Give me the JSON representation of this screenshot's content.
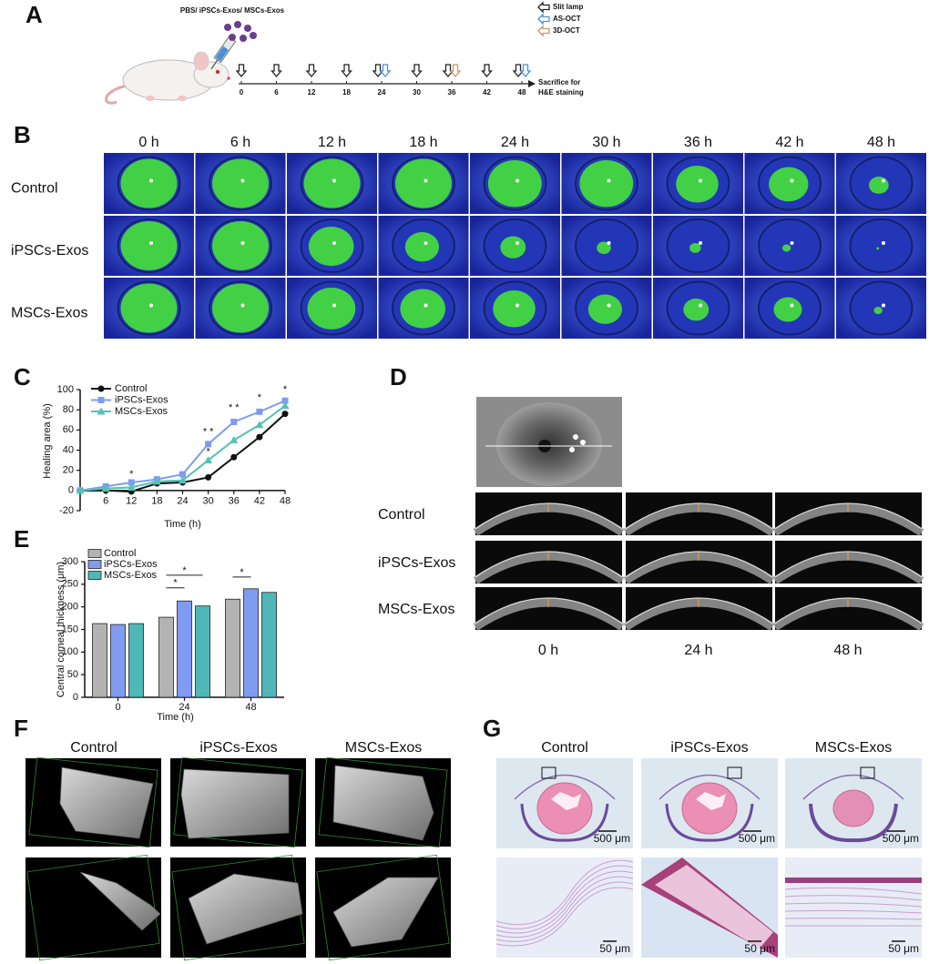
{
  "panel_labels": [
    "A",
    "B",
    "C",
    "D",
    "E",
    "F",
    "G"
  ],
  "panel_a": {
    "treatment": "PBS/ iPSCs-Exos/ MSCs-Exos",
    "legend": [
      "Slit lamp",
      "AS-OCT",
      "3D-OCT"
    ],
    "timepoints": [
      "0",
      "6",
      "12",
      "18",
      "24",
      "30",
      "36",
      "42",
      "48"
    ],
    "endpoint": [
      "Sacrifice for",
      "H&E staining"
    ]
  },
  "panel_b": {
    "columns": [
      "0 h",
      "6 h",
      "12 h",
      "18 h",
      "24 h",
      "30 h",
      "36 h",
      "42 h",
      "48 h"
    ],
    "rows": [
      "Control",
      "iPSCs-Exos",
      "MSCs-Exos"
    ]
  },
  "chart_data": [
    {
      "type": "line",
      "xlabel": "Time (h)",
      "ylabel": "Healing area (%)",
      "x": [
        0,
        6,
        12,
        18,
        24,
        30,
        36,
        42,
        48
      ],
      "xlim": [
        0,
        48
      ],
      "xticks": [
        6,
        12,
        18,
        24,
        30,
        36,
        42,
        48
      ],
      "ylim": [
        -20,
        100
      ],
      "yticks": [
        -20,
        0,
        20,
        40,
        60,
        80,
        100
      ],
      "legend": "upper left",
      "series": [
        {
          "name": "Control",
          "color": "#111111",
          "marker": "circle",
          "values": [
            0,
            0,
            -1,
            7,
            8,
            13,
            33,
            53,
            76
          ]
        },
        {
          "name": "iPSCs-Exos",
          "color": "#7f9cf0",
          "marker": "square",
          "values": [
            0,
            4,
            8,
            11,
            16,
            46,
            68,
            78,
            89
          ]
        },
        {
          "name": "MSCs-Exos",
          "color": "#52c2b4",
          "marker": "triangle",
          "values": [
            0,
            2,
            3,
            9,
            10,
            30,
            50,
            65,
            84
          ]
        }
      ],
      "annotations": [
        {
          "text": "*",
          "x": 12,
          "y": 16,
          "color": "#7f9cf0"
        },
        {
          "text": "* *",
          "x": 30,
          "y": 58,
          "color": "#7f9cf0"
        },
        {
          "text": "*",
          "x": 30,
          "y": 38,
          "color": "#52c2b4"
        },
        {
          "text": "* *",
          "x": 36,
          "y": 82,
          "color": "#7f9cf0"
        },
        {
          "text": "*",
          "x": 42,
          "y": 92,
          "color": "#7f9cf0"
        },
        {
          "text": "*",
          "x": 48,
          "y": 100,
          "color": "#7f9cf0"
        }
      ]
    },
    {
      "type": "bar",
      "xlabel": "Time (h)",
      "ylabel": "Central corneal thickness (μm)",
      "categories": [
        "0",
        "24",
        "48"
      ],
      "ylim": [
        0,
        300
      ],
      "yticks": [
        0,
        50,
        100,
        150,
        200,
        250,
        300
      ],
      "legend": "upper left",
      "series": [
        {
          "name": "Control",
          "color": "#b3b3b3",
          "values": [
            163,
            177,
            217
          ]
        },
        {
          "name": "iPSCs-Exos",
          "color": "#7f9cf0",
          "values": [
            161,
            213,
            240
          ]
        },
        {
          "name": "MSCs-Exos",
          "color": "#4fb7b8",
          "values": [
            163,
            202,
            232
          ]
        }
      ],
      "annotations": [
        {
          "text": "*",
          "category": 1,
          "series": [
            0,
            1
          ],
          "y": 242
        },
        {
          "text": "*",
          "category": 1,
          "series": [
            0,
            2
          ],
          "y": 270
        },
        {
          "text": "*",
          "category": 2,
          "series": [
            0,
            1
          ],
          "y": 266
        }
      ]
    }
  ],
  "panel_d": {
    "rows": [
      "Control",
      "iPSCs-Exos",
      "MSCs-Exos"
    ],
    "columns": [
      "0 h",
      "24 h",
      "48 h"
    ]
  },
  "panel_f": {
    "columns": [
      "Control",
      "iPSCs-Exos",
      "MSCs-Exos"
    ]
  },
  "panel_g": {
    "columns": [
      "Control",
      "iPSCs-Exos",
      "MSCs-Exos"
    ],
    "scale_bars": [
      "500 μm",
      "50 μm"
    ]
  }
}
